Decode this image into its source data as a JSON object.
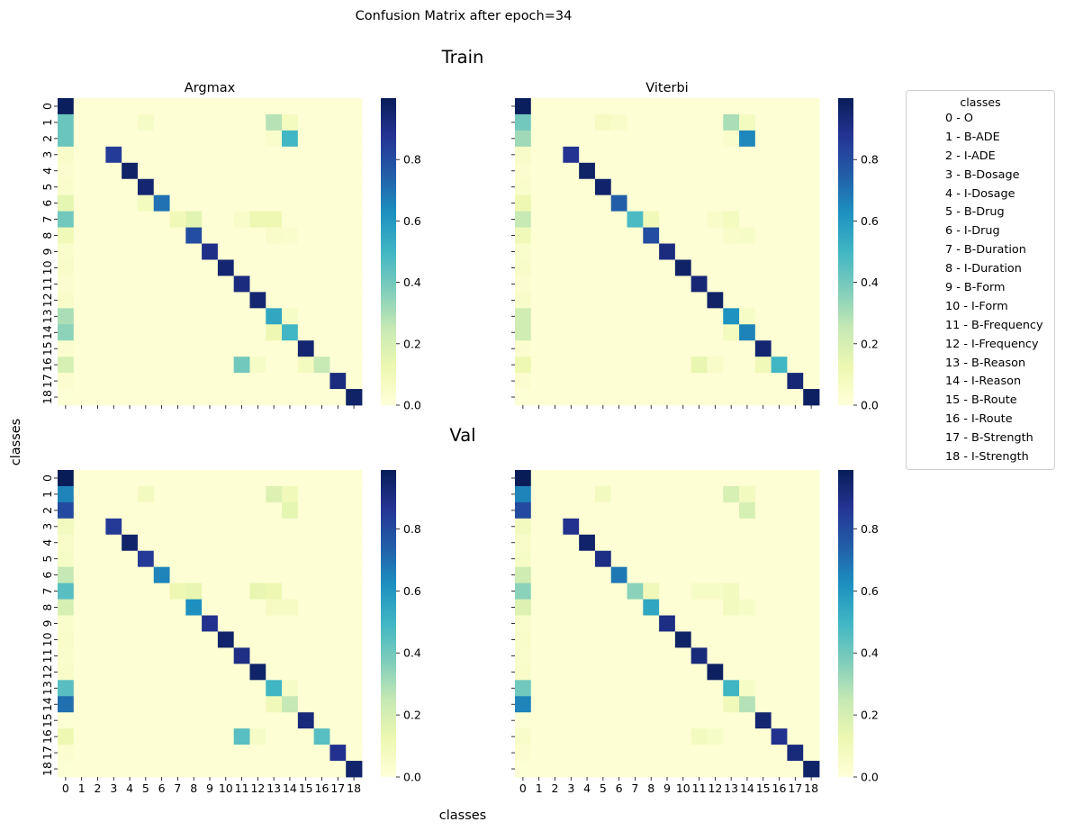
{
  "figure": {
    "suptitle": "Confusion Matrix after epoch=34",
    "row_titles": [
      "Train",
      "Val"
    ],
    "col_titles": [
      "Argmax",
      "Viterbi"
    ],
    "xlabel": "classes",
    "ylabel": "classes",
    "colormap": "YlGnBu",
    "colormap_stops": [
      "#ffffd9",
      "#edf8b1",
      "#c7e9b4",
      "#7fcdbb",
      "#41b6c4",
      "#1d91c0",
      "#225ea8",
      "#253494",
      "#081d58"
    ]
  },
  "legend": {
    "title": "classes",
    "items": [
      "0 - O",
      "1 - B-ADE",
      "2 - I-ADE",
      "3 - B-Dosage",
      "4 - I-Dosage",
      "5 - B-Drug",
      "6 - I-Drug",
      "7 - B-Duration",
      "8 - I-Duration",
      "9 - B-Form",
      "10 - I-Form",
      "11 - B-Frequency",
      "12 - I-Frequency",
      "13 - B-Reason",
      "14 - I-Reason",
      "15 - B-Route",
      "16 - I-Route",
      "17 - B-Strength",
      "18 - I-Strength"
    ]
  },
  "chart_data": [
    {
      "type": "heatmap",
      "title": "Argmax",
      "row_title": "Train",
      "x_ticks": [
        "0",
        "1",
        "2",
        "3",
        "4",
        "5",
        "6",
        "7",
        "8",
        "9",
        "10",
        "11",
        "12",
        "13",
        "14",
        "15",
        "16",
        "17",
        "18"
      ],
      "y_ticks": [
        "0",
        "1",
        "2",
        "3",
        "4",
        "5",
        "6",
        "7",
        "8",
        "9",
        "10",
        "11",
        "12",
        "13",
        "14",
        "15",
        "16",
        "17",
        "18"
      ],
      "colorbar": {
        "min": 0,
        "max": 1.0,
        "ticks": [
          0.0,
          0.2,
          0.4,
          0.6,
          0.8
        ]
      },
      "diagonal": [
        0.99,
        0.0,
        0.0,
        0.85,
        0.97,
        0.95,
        0.7,
        0.1,
        0.8,
        0.9,
        0.95,
        0.92,
        0.95,
        0.55,
        0.5,
        0.95,
        0.25,
        0.92,
        0.97
      ],
      "first_column": [
        0.99,
        0.42,
        0.42,
        0.05,
        0.03,
        0.04,
        0.15,
        0.4,
        0.1,
        0.04,
        0.05,
        0.03,
        0.05,
        0.3,
        0.35,
        0.03,
        0.2,
        0.03,
        0.02
      ],
      "off_diagonal": [
        {
          "row": 1,
          "col": 13,
          "value": 0.28
        },
        {
          "row": 1,
          "col": 14,
          "value": 0.08
        },
        {
          "row": 1,
          "col": 5,
          "value": 0.06
        },
        {
          "row": 2,
          "col": 14,
          "value": 0.5
        },
        {
          "row": 2,
          "col": 13,
          "value": 0.04
        },
        {
          "row": 7,
          "col": 8,
          "value": 0.16
        },
        {
          "row": 7,
          "col": 12,
          "value": 0.12
        },
        {
          "row": 7,
          "col": 13,
          "value": 0.12
        },
        {
          "row": 7,
          "col": 11,
          "value": 0.05
        },
        {
          "row": 8,
          "col": 13,
          "value": 0.05
        },
        {
          "row": 8,
          "col": 14,
          "value": 0.04
        },
        {
          "row": 14,
          "col": 13,
          "value": 0.12
        },
        {
          "row": 16,
          "col": 11,
          "value": 0.4
        },
        {
          "row": 16,
          "col": 12,
          "value": 0.06
        },
        {
          "row": 16,
          "col": 15,
          "value": 0.08
        },
        {
          "row": 6,
          "col": 5,
          "value": 0.08
        },
        {
          "row": 13,
          "col": 14,
          "value": 0.06
        }
      ]
    },
    {
      "type": "heatmap",
      "title": "Viterbi",
      "row_title": "Train",
      "x_ticks": [
        "0",
        "1",
        "2",
        "3",
        "4",
        "5",
        "6",
        "7",
        "8",
        "9",
        "10",
        "11",
        "12",
        "13",
        "14",
        "15",
        "16",
        "17",
        "18"
      ],
      "y_ticks": [
        "0",
        "1",
        "2",
        "3",
        "4",
        "5",
        "6",
        "7",
        "8",
        "9",
        "10",
        "11",
        "12",
        "13",
        "14",
        "15",
        "16",
        "17",
        "18"
      ],
      "colorbar": {
        "min": 0,
        "max": 1.0,
        "ticks": [
          0.0,
          0.2,
          0.4,
          0.6,
          0.8
        ]
      },
      "diagonal": [
        0.99,
        0.0,
        0.0,
        0.88,
        0.97,
        0.96,
        0.75,
        0.48,
        0.8,
        0.92,
        0.97,
        0.94,
        0.97,
        0.62,
        0.66,
        0.95,
        0.5,
        0.94,
        0.98
      ],
      "first_column": [
        0.99,
        0.4,
        0.32,
        0.05,
        0.03,
        0.04,
        0.12,
        0.25,
        0.1,
        0.04,
        0.05,
        0.03,
        0.05,
        0.22,
        0.22,
        0.03,
        0.12,
        0.03,
        0.02
      ],
      "off_diagonal": [
        {
          "row": 1,
          "col": 13,
          "value": 0.3
        },
        {
          "row": 1,
          "col": 14,
          "value": 0.08
        },
        {
          "row": 1,
          "col": 5,
          "value": 0.07
        },
        {
          "row": 1,
          "col": 6,
          "value": 0.05
        },
        {
          "row": 2,
          "col": 14,
          "value": 0.65
        },
        {
          "row": 2,
          "col": 13,
          "value": 0.04
        },
        {
          "row": 7,
          "col": 8,
          "value": 0.1
        },
        {
          "row": 7,
          "col": 12,
          "value": 0.05
        },
        {
          "row": 7,
          "col": 13,
          "value": 0.08
        },
        {
          "row": 8,
          "col": 13,
          "value": 0.05
        },
        {
          "row": 8,
          "col": 14,
          "value": 0.06
        },
        {
          "row": 14,
          "col": 13,
          "value": 0.08
        },
        {
          "row": 16,
          "col": 11,
          "value": 0.14
        },
        {
          "row": 16,
          "col": 12,
          "value": 0.05
        },
        {
          "row": 16,
          "col": 15,
          "value": 0.1
        },
        {
          "row": 13,
          "col": 14,
          "value": 0.06
        }
      ]
    },
    {
      "type": "heatmap",
      "title": "",
      "row_title": "Val",
      "x_ticks": [
        "0",
        "1",
        "2",
        "3",
        "4",
        "5",
        "6",
        "7",
        "8",
        "9",
        "10",
        "11",
        "12",
        "13",
        "14",
        "15",
        "16",
        "17",
        "18"
      ],
      "y_ticks": [
        "0",
        "1",
        "2",
        "3",
        "4",
        "5",
        "6",
        "7",
        "8",
        "9",
        "10",
        "11",
        "12",
        "13",
        "14",
        "15",
        "16",
        "17",
        "18"
      ],
      "colorbar": {
        "min": 0,
        "max": 0.99,
        "ticks": [
          0.0,
          0.2,
          0.4,
          0.6,
          0.8
        ]
      },
      "diagonal": [
        0.99,
        0.0,
        0.0,
        0.85,
        0.95,
        0.85,
        0.65,
        0.12,
        0.62,
        0.88,
        0.95,
        0.9,
        0.96,
        0.5,
        0.25,
        0.92,
        0.45,
        0.88,
        0.95
      ],
      "first_column": [
        0.99,
        0.65,
        0.8,
        0.08,
        0.05,
        0.06,
        0.25,
        0.45,
        0.2,
        0.04,
        0.05,
        0.04,
        0.05,
        0.45,
        0.7,
        0.02,
        0.12,
        0.03,
        0.02
      ],
      "off_diagonal": [
        {
          "row": 1,
          "col": 13,
          "value": 0.18
        },
        {
          "row": 1,
          "col": 14,
          "value": 0.1
        },
        {
          "row": 1,
          "col": 5,
          "value": 0.08
        },
        {
          "row": 2,
          "col": 14,
          "value": 0.15
        },
        {
          "row": 7,
          "col": 8,
          "value": 0.14
        },
        {
          "row": 7,
          "col": 12,
          "value": 0.14
        },
        {
          "row": 7,
          "col": 13,
          "value": 0.12
        },
        {
          "row": 8,
          "col": 13,
          "value": 0.07
        },
        {
          "row": 8,
          "col": 14,
          "value": 0.07
        },
        {
          "row": 14,
          "col": 13,
          "value": 0.1
        },
        {
          "row": 16,
          "col": 11,
          "value": 0.45
        },
        {
          "row": 16,
          "col": 12,
          "value": 0.06
        },
        {
          "row": 13,
          "col": 14,
          "value": 0.06
        }
      ]
    },
    {
      "type": "heatmap",
      "title": "",
      "row_title": "Val",
      "x_ticks": [
        "0",
        "1",
        "2",
        "3",
        "4",
        "5",
        "6",
        "7",
        "8",
        "9",
        "10",
        "11",
        "12",
        "13",
        "14",
        "15",
        "16",
        "17",
        "18"
      ],
      "y_ticks": [
        "0",
        "1",
        "2",
        "3",
        "4",
        "5",
        "6",
        "7",
        "8",
        "9",
        "10",
        "11",
        "12",
        "13",
        "14",
        "15",
        "16",
        "17",
        "18"
      ],
      "colorbar": {
        "min": 0,
        "max": 0.99,
        "ticks": [
          0.0,
          0.2,
          0.4,
          0.6,
          0.8
        ]
      },
      "diagonal": [
        0.99,
        0.0,
        0.0,
        0.88,
        0.95,
        0.9,
        0.68,
        0.35,
        0.55,
        0.9,
        0.96,
        0.92,
        0.97,
        0.5,
        0.28,
        0.94,
        0.88,
        0.92,
        0.96
      ],
      "first_column": [
        0.99,
        0.65,
        0.8,
        0.08,
        0.05,
        0.06,
        0.22,
        0.35,
        0.18,
        0.04,
        0.05,
        0.04,
        0.05,
        0.4,
        0.65,
        0.02,
        0.05,
        0.03,
        0.02
      ],
      "off_diagonal": [
        {
          "row": 1,
          "col": 13,
          "value": 0.2
        },
        {
          "row": 1,
          "col": 14,
          "value": 0.08
        },
        {
          "row": 1,
          "col": 5,
          "value": 0.08
        },
        {
          "row": 2,
          "col": 14,
          "value": 0.2
        },
        {
          "row": 7,
          "col": 8,
          "value": 0.1
        },
        {
          "row": 7,
          "col": 11,
          "value": 0.06
        },
        {
          "row": 7,
          "col": 12,
          "value": 0.06
        },
        {
          "row": 7,
          "col": 13,
          "value": 0.08
        },
        {
          "row": 8,
          "col": 13,
          "value": 0.08
        },
        {
          "row": 8,
          "col": 14,
          "value": 0.06
        },
        {
          "row": 14,
          "col": 13,
          "value": 0.1
        },
        {
          "row": 16,
          "col": 11,
          "value": 0.08
        },
        {
          "row": 16,
          "col": 12,
          "value": 0.06
        },
        {
          "row": 13,
          "col": 14,
          "value": 0.06
        }
      ]
    }
  ]
}
